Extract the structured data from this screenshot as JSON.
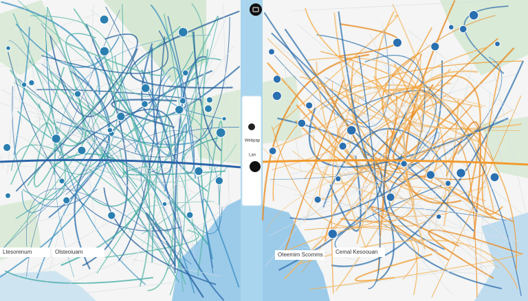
{
  "left_map": {
    "labels": [
      "Ltesorenum",
      "Olsteoiuam"
    ]
  },
  "center_panel": {
    "title": "Webpap",
    "subtitle": "Lan"
  },
  "right_map": {
    "labels": [
      "Oteemim Scomms",
      "Cemal Kesoouan"
    ]
  }
}
